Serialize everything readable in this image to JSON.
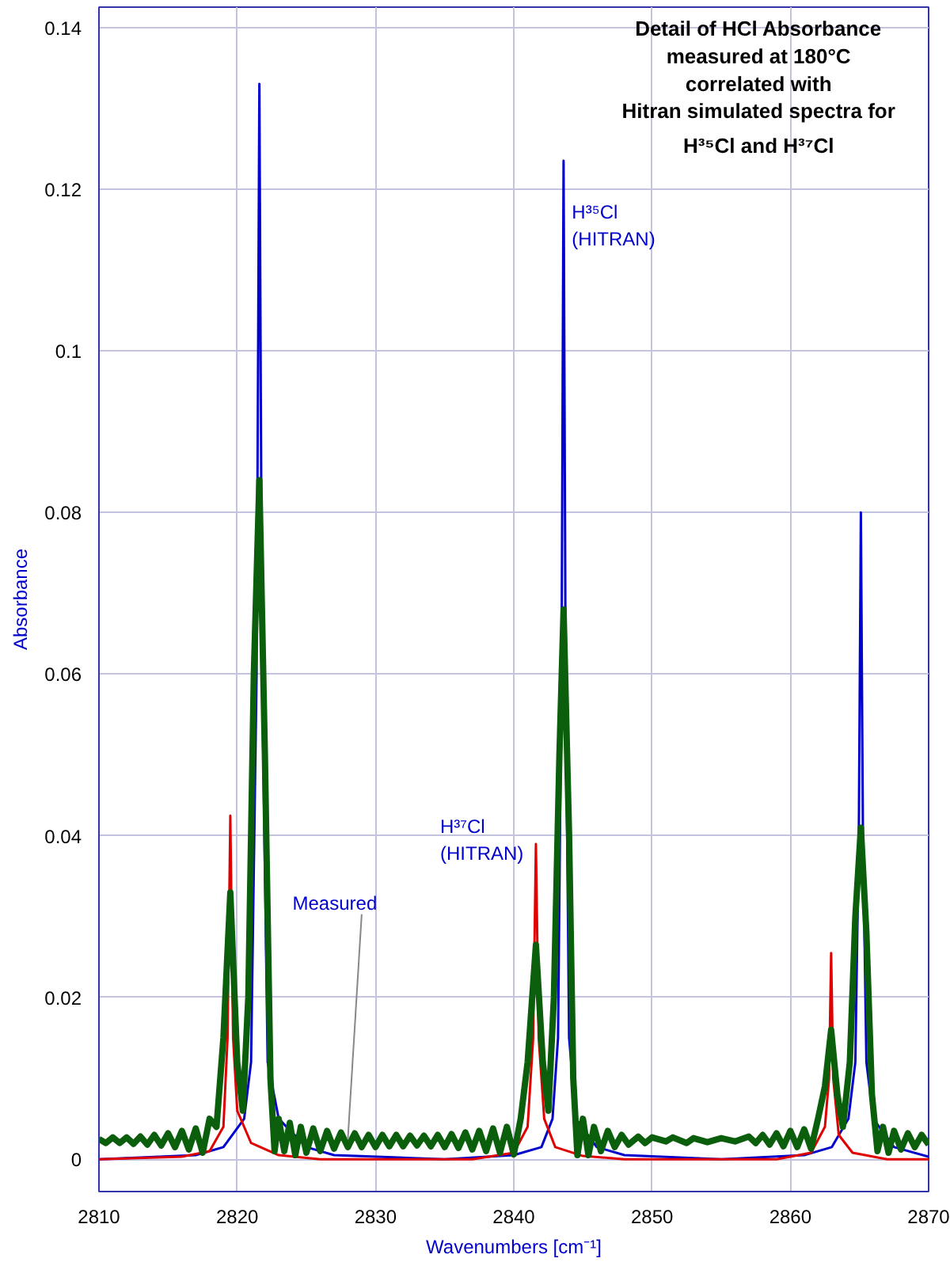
{
  "chart_data": {
    "type": "line",
    "title": "Detail of HCl Absorbance\nmeasured at 180°C\ncorrelated with\nHitran simulated spectra for\nH³⁵Cl and H³⁷Cl",
    "xlabel": "Wavenumbers [cm⁻¹]",
    "ylabel": "Absorbance",
    "xlim": [
      2810,
      2870
    ],
    "xticks": [
      2810,
      2820,
      2830,
      2840,
      2850,
      2860,
      2870
    ],
    "ylim": [
      -0.004,
      0.1425
    ],
    "yticks": [
      0,
      0.02,
      0.04,
      0.06,
      0.08,
      0.1,
      0.12,
      0.14
    ],
    "grid": true,
    "marker": "none",
    "line_style": "solid",
    "series": [
      {
        "color": "#0000cc",
        "x": [
          2810,
          2817,
          2819,
          2820.5,
          2821,
          2821.4,
          2821.6,
          2821.8,
          2822.2,
          2823,
          2825,
          2827,
          2835,
          2840,
          2842,
          2842.8,
          2843.2,
          2843.45,
          2843.6,
          2843.75,
          2844,
          2844.5,
          2846,
          2848,
          2855,
          2861,
          2863,
          2864.2,
          2864.7,
          2864.95,
          2865.1,
          2865.25,
          2865.5,
          2866,
          2867.5,
          2870
        ],
        "values": [
          0,
          0.0005,
          0.0015,
          0.005,
          0.012,
          0.06,
          0.133,
          0.06,
          0.012,
          0.005,
          0.0015,
          0.0005,
          0,
          0.0005,
          0.0015,
          0.005,
          0.015,
          0.06,
          0.1235,
          0.06,
          0.015,
          0.005,
          0.0015,
          0.0005,
          0,
          0.0005,
          0.0015,
          0.005,
          0.012,
          0.04,
          0.08,
          0.04,
          0.012,
          0.005,
          0.0015,
          0.0003
        ]
      },
      {
        "color": "#e00000",
        "x": [
          2810,
          2816,
          2818,
          2819,
          2819.3,
          2819.5,
          2819.7,
          2820,
          2821,
          2823,
          2826,
          2837,
          2840,
          2841,
          2841.4,
          2841.6,
          2841.8,
          2842.2,
          2843,
          2845,
          2848,
          2859,
          2861.5,
          2862.5,
          2862.8,
          2862.95,
          2863.1,
          2863.5,
          2864.5,
          2867,
          2870
        ],
        "values": [
          0,
          0.0003,
          0.001,
          0.004,
          0.015,
          0.0425,
          0.015,
          0.006,
          0.002,
          0.0005,
          0,
          0,
          0.0008,
          0.004,
          0.015,
          0.039,
          0.015,
          0.005,
          0.0015,
          0.0004,
          0,
          0,
          0.0008,
          0.004,
          0.01,
          0.0255,
          0.01,
          0.003,
          0.0008,
          0,
          0
        ]
      },
      {
        "color": "#0b5e0b",
        "x": [
          2810,
          2810.5,
          2811,
          2811.5,
          2812,
          2812.5,
          2813,
          2813.5,
          2814,
          2814.5,
          2815,
          2815.5,
          2816,
          2816.5,
          2817,
          2817.5,
          2818,
          2818.5,
          2819,
          2819.5,
          2820,
          2820.4,
          2820.8,
          2821.2,
          2821.6,
          2822,
          2822.4,
          2822.7,
          2823,
          2823.4,
          2823.8,
          2824.2,
          2824.6,
          2825,
          2825.5,
          2826,
          2826.5,
          2827,
          2827.5,
          2828,
          2828.5,
          2829,
          2829.5,
          2830,
          2830.5,
          2831,
          2831.5,
          2832,
          2832.5,
          2833,
          2833.5,
          2834,
          2834.5,
          2835,
          2835.5,
          2836,
          2836.5,
          2837,
          2837.5,
          2838,
          2838.5,
          2839,
          2839.5,
          2840,
          2840.5,
          2841,
          2841.6,
          2842.1,
          2842.5,
          2842.9,
          2843.3,
          2843.6,
          2844,
          2844.3,
          2844.6,
          2845,
          2845.4,
          2845.8,
          2846.3,
          2846.8,
          2847.3,
          2847.8,
          2848.3,
          2849,
          2849.5,
          2850,
          2851,
          2851.5,
          2852.5,
          2853,
          2854,
          2855,
          2856,
          2857,
          2857.5,
          2858,
          2858.5,
          2859,
          2859.5,
          2860,
          2860.5,
          2861,
          2861.5,
          2862,
          2862.5,
          2862.95,
          2863.4,
          2863.8,
          2864.3,
          2864.7,
          2865.1,
          2865.5,
          2865.9,
          2866.3,
          2866.7,
          2867.1,
          2867.5,
          2868,
          2868.5,
          2869,
          2869.5,
          2870
        ],
        "values": [
          0.0025,
          0.002,
          0.0027,
          0.002,
          0.0027,
          0.0019,
          0.0028,
          0.0018,
          0.003,
          0.0017,
          0.0032,
          0.0015,
          0.0035,
          0.0012,
          0.0038,
          0.0008,
          0.005,
          0.004,
          0.015,
          0.033,
          0.012,
          0.006,
          0.02,
          0.06,
          0.084,
          0.05,
          0.01,
          0.001,
          0.005,
          0.001,
          0.0045,
          0.0005,
          0.004,
          0.0008,
          0.0038,
          0.001,
          0.0035,
          0.0013,
          0.0033,
          0.0015,
          0.0032,
          0.0015,
          0.003,
          0.0015,
          0.003,
          0.0016,
          0.003,
          0.0016,
          0.0029,
          0.0017,
          0.0029,
          0.0016,
          0.003,
          0.0015,
          0.0031,
          0.0014,
          0.0033,
          0.0012,
          0.0035,
          0.001,
          0.0038,
          0.0008,
          0.004,
          0.0006,
          0.005,
          0.012,
          0.0265,
          0.012,
          0.006,
          0.02,
          0.05,
          0.068,
          0.04,
          0.01,
          0.0005,
          0.005,
          0.0005,
          0.004,
          0.001,
          0.0035,
          0.0015,
          0.003,
          0.0018,
          0.0028,
          0.002,
          0.0027,
          0.0022,
          0.0027,
          0.002,
          0.0026,
          0.0021,
          0.0026,
          0.0022,
          0.0028,
          0.002,
          0.003,
          0.0018,
          0.0032,
          0.0016,
          0.0035,
          0.0015,
          0.0037,
          0.0013,
          0.005,
          0.009,
          0.016,
          0.008,
          0.004,
          0.012,
          0.03,
          0.041,
          0.028,
          0.008,
          0.001,
          0.004,
          0.0008,
          0.0035,
          0.0012,
          0.0032,
          0.0015,
          0.003,
          0.0018
        ]
      }
    ],
    "annotations": [
      {
        "text": "H³⁵Cl\n(HITRAN)",
        "x": 2843.6,
        "y": 0.1235
      },
      {
        "text": "H³⁷Cl\n(HITRAN)",
        "x": 2841.6,
        "y": 0.039
      },
      {
        "text": "Measured",
        "x": 2828,
        "y": 0.0025
      }
    ]
  }
}
